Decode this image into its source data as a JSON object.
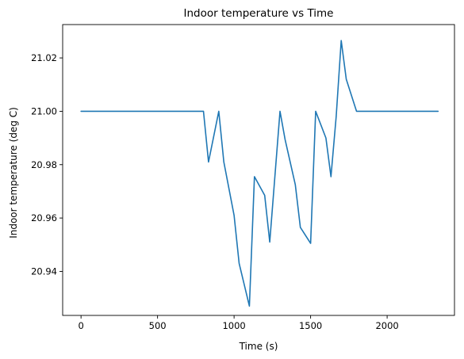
{
  "chart_data": {
    "type": "line",
    "title": "Indoor temperature vs Time",
    "xlabel": "Time (s)",
    "ylabel": "Indoor temperature (deg C)",
    "xlim": [
      -120,
      2440
    ],
    "ylim": [
      20.9235,
      21.0325
    ],
    "xticks": [
      0,
      500,
      1000,
      1500,
      2000
    ],
    "xtick_labels": [
      "0",
      "500",
      "1000",
      "1500",
      "2000"
    ],
    "yticks": [
      20.94,
      20.96,
      20.98,
      21.0,
      21.02
    ],
    "ytick_labels": [
      "20.94",
      "20.96",
      "20.98",
      "21.00",
      "21.02"
    ],
    "grid": false,
    "legend": "none",
    "series": [
      {
        "color": "#1f77b4",
        "x": [
          0,
          800,
          833,
          900,
          933,
          1000,
          1033,
          1100,
          1133,
          1200,
          1233,
          1300,
          1333,
          1400,
          1433,
          1500,
          1533,
          1600,
          1633,
          1667,
          1700,
          1733,
          1800,
          2333
        ],
        "y": [
          21.0,
          21.0,
          20.981,
          21.0,
          20.981,
          20.961,
          20.943,
          20.927,
          20.9755,
          20.9685,
          20.951,
          21.0,
          20.9895,
          20.9725,
          20.9565,
          20.9505,
          21.0,
          20.99,
          20.9755,
          20.998,
          21.0265,
          21.012,
          21.0,
          21.0
        ]
      }
    ]
  }
}
